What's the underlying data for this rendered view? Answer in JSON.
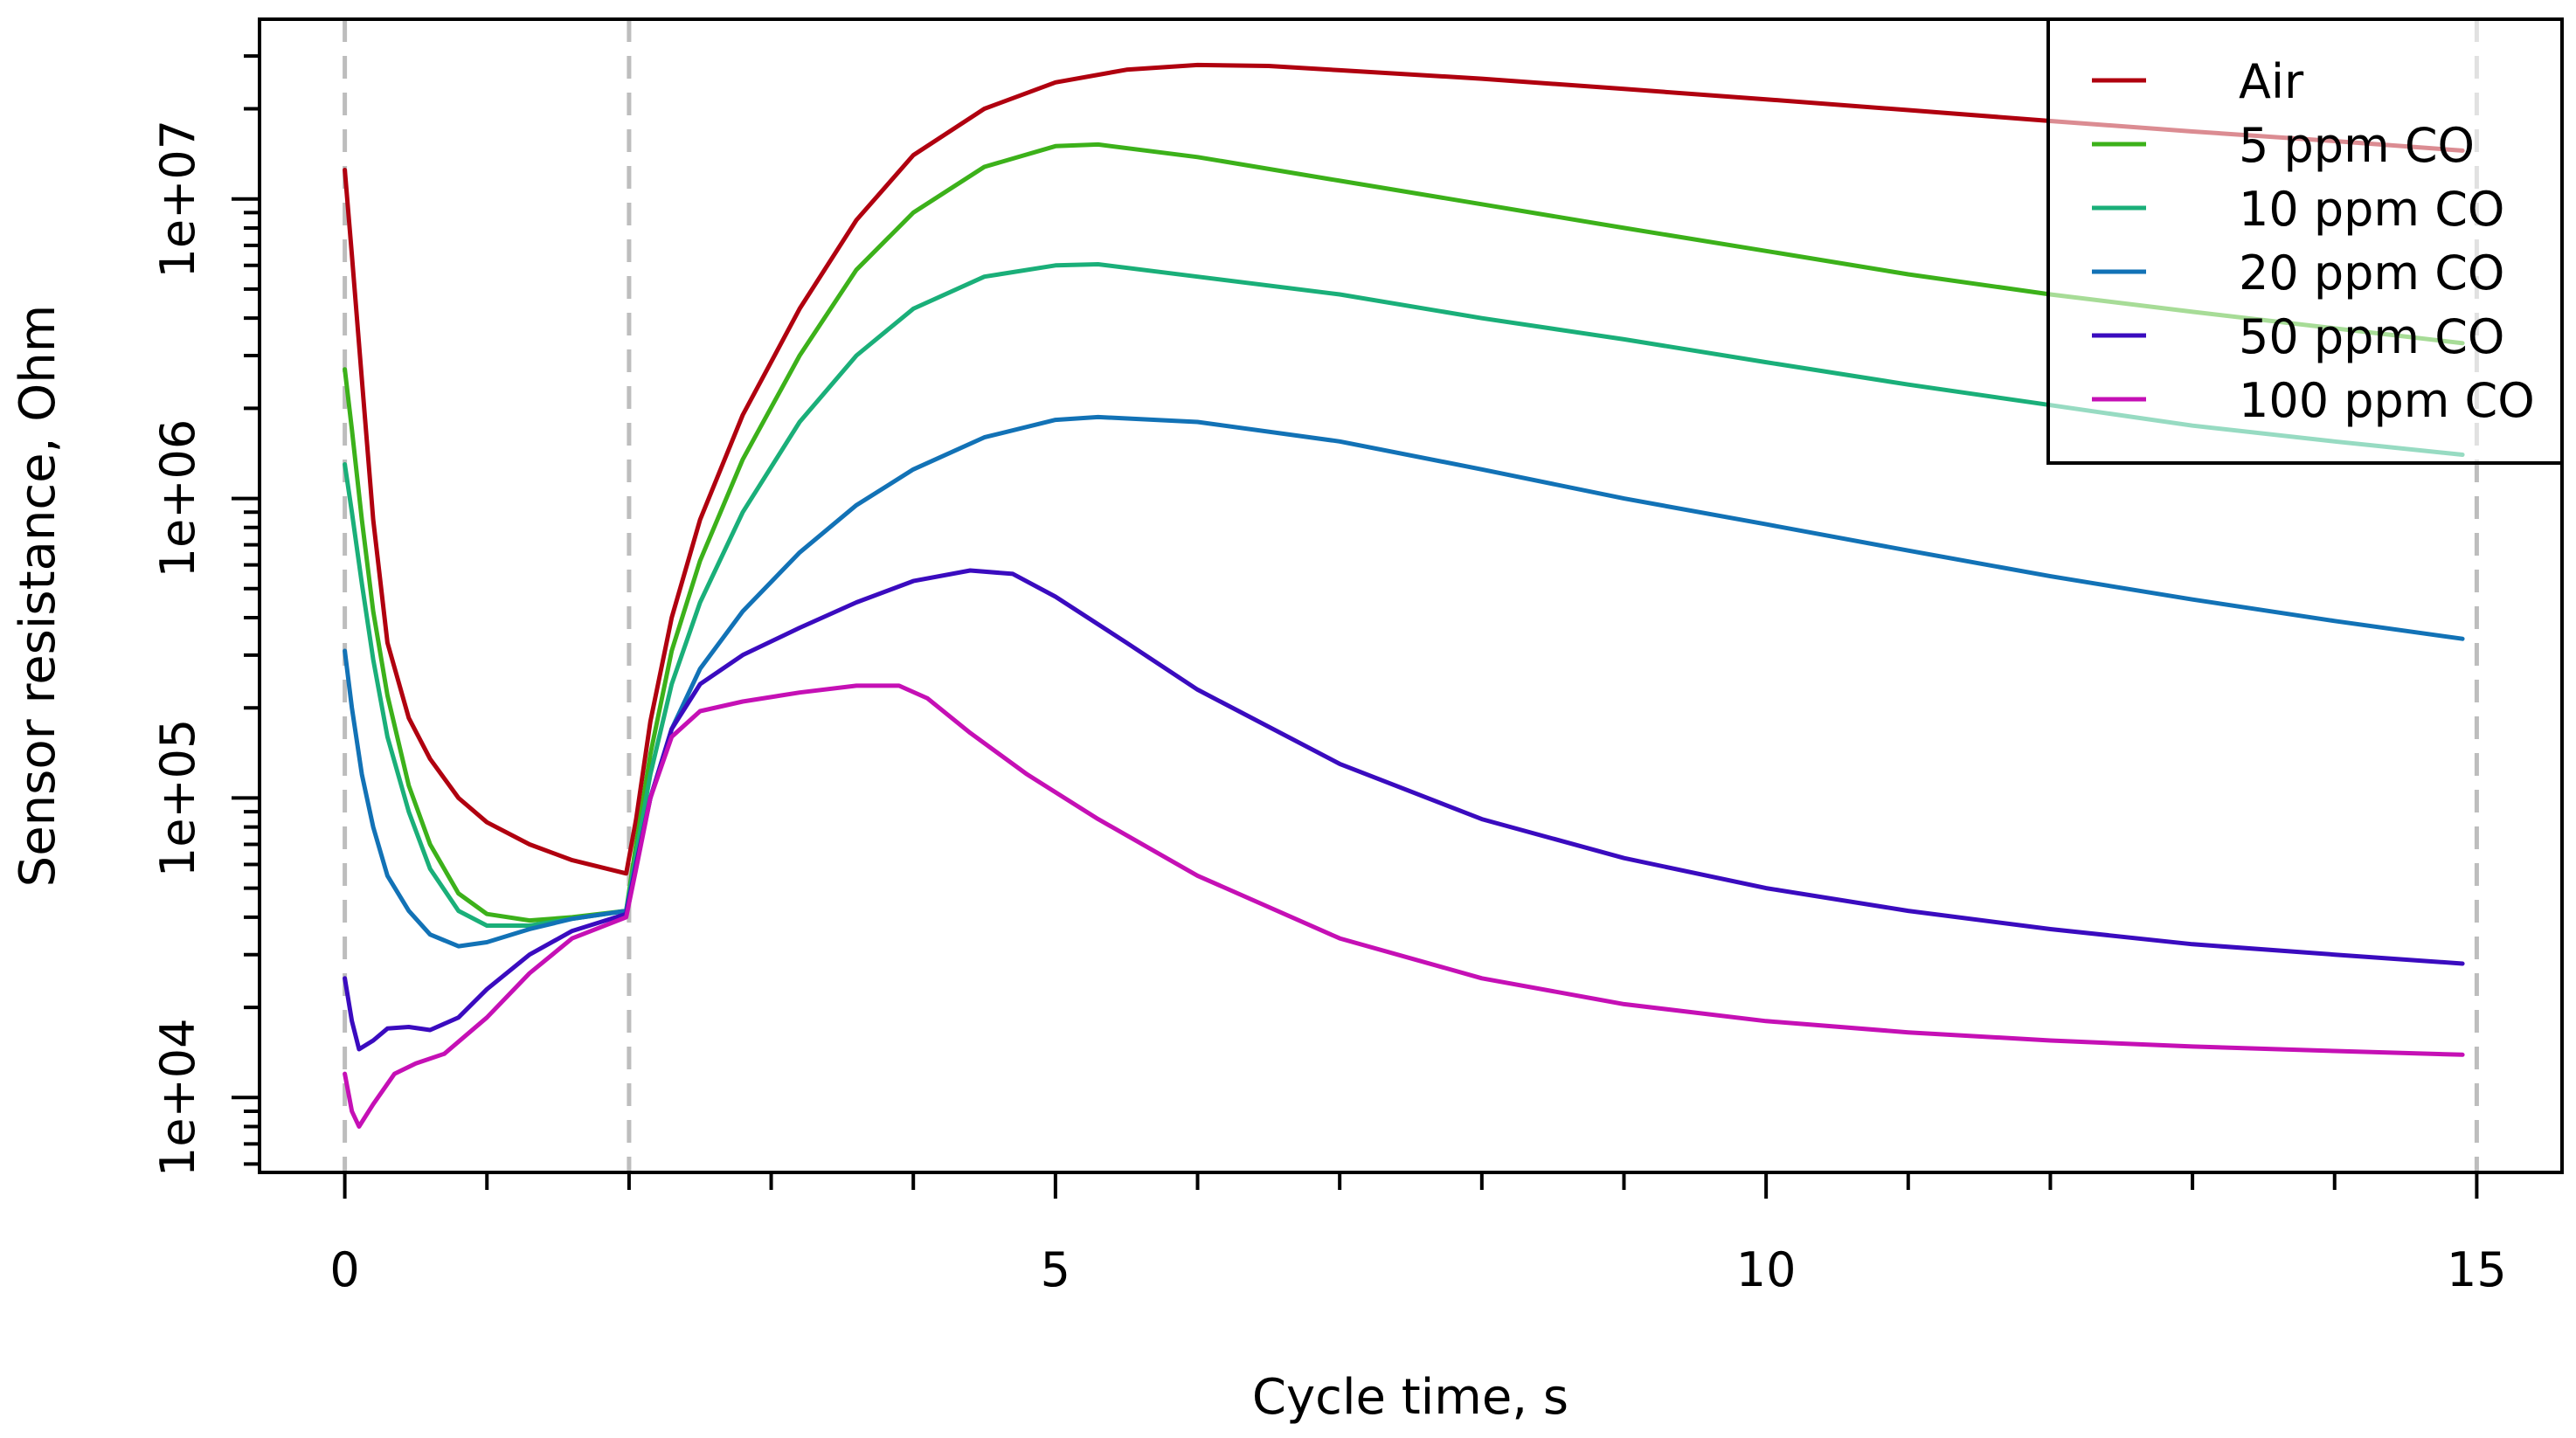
{
  "chart_data": {
    "type": "line",
    "title": "",
    "xlabel": "Cycle time, s",
    "ylabel": "Sensor resistance, Ohm",
    "xlim": [
      -0.6,
      15.6
    ],
    "ylim_log10": [
      3.75,
      7.6
    ],
    "y_scale": "log",
    "x_ticks": [
      0,
      5,
      10,
      15
    ],
    "x_tick_labels": [
      "0",
      "5",
      "10",
      "15"
    ],
    "x_minor_ticks": [
      0,
      1,
      2,
      3,
      4,
      5,
      6,
      7,
      8,
      9,
      10,
      11,
      12,
      13,
      14,
      15
    ],
    "y_ticks": [
      10000,
      100000,
      1000000,
      10000000
    ],
    "y_tick_labels": [
      "1e+04",
      "1e+05",
      "1e+06",
      "1e+07"
    ],
    "vlines": [
      0,
      2,
      15
    ],
    "grid": false,
    "legend_position": "top-right",
    "series": [
      {
        "name": "Air",
        "color": "#b0000f",
        "points": [
          [
            0,
            12500000
          ],
          [
            0.05,
            6500000
          ],
          [
            0.12,
            2500000
          ],
          [
            0.2,
            850000
          ],
          [
            0.3,
            330000
          ],
          [
            0.45,
            185000
          ],
          [
            0.6,
            135000
          ],
          [
            0.8,
            100000
          ],
          [
            1.0,
            83000
          ],
          [
            1.3,
            70000
          ],
          [
            1.6,
            62000
          ],
          [
            1.98,
            56000
          ],
          [
            2.05,
            85000
          ],
          [
            2.15,
            180000
          ],
          [
            2.3,
            400000
          ],
          [
            2.5,
            850000
          ],
          [
            2.8,
            1900000
          ],
          [
            3.2,
            4300000
          ],
          [
            3.6,
            8500000
          ],
          [
            4.0,
            14000000
          ],
          [
            4.5,
            20000000
          ],
          [
            5.0,
            24500000
          ],
          [
            5.5,
            27000000
          ],
          [
            6.0,
            28000000
          ],
          [
            6.5,
            27800000
          ],
          [
            7.0,
            26900000
          ],
          [
            8.0,
            25200000
          ],
          [
            9.0,
            23300000
          ],
          [
            10.0,
            21500000
          ],
          [
            11.0,
            19800000
          ],
          [
            12.0,
            18200000
          ],
          [
            13.0,
            16800000
          ],
          [
            14.0,
            15600000
          ],
          [
            14.9,
            14500000
          ]
        ]
      },
      {
        "name": "5 ppm CO",
        "color": "#3cb11a",
        "points": [
          [
            0,
            2700000
          ],
          [
            0.05,
            1700000
          ],
          [
            0.12,
            850000
          ],
          [
            0.2,
            420000
          ],
          [
            0.3,
            220000
          ],
          [
            0.45,
            110000
          ],
          [
            0.6,
            70000
          ],
          [
            0.8,
            48000
          ],
          [
            1.0,
            41000
          ],
          [
            1.3,
            39000
          ],
          [
            1.6,
            40000
          ],
          [
            1.98,
            42000
          ],
          [
            2.05,
            70000
          ],
          [
            2.15,
            140000
          ],
          [
            2.3,
            310000
          ],
          [
            2.5,
            620000
          ],
          [
            2.8,
            1350000
          ],
          [
            3.2,
            3000000
          ],
          [
            3.6,
            5800000
          ],
          [
            4.0,
            9000000
          ],
          [
            4.5,
            12800000
          ],
          [
            5.0,
            15000000
          ],
          [
            5.3,
            15200000
          ],
          [
            6.0,
            13800000
          ],
          [
            7.0,
            11500000
          ],
          [
            8.0,
            9600000
          ],
          [
            9.0,
            8000000
          ],
          [
            10.0,
            6700000
          ],
          [
            11.0,
            5600000
          ],
          [
            12.0,
            4800000
          ],
          [
            13.0,
            4200000
          ],
          [
            14.0,
            3700000
          ],
          [
            14.9,
            3300000
          ]
        ]
      },
      {
        "name": "10 ppm CO",
        "color": "#1aaf79",
        "points": [
          [
            0,
            1300000
          ],
          [
            0.05,
            900000
          ],
          [
            0.12,
            520000
          ],
          [
            0.2,
            290000
          ],
          [
            0.3,
            160000
          ],
          [
            0.45,
            90000
          ],
          [
            0.6,
            58000
          ],
          [
            0.8,
            42000
          ],
          [
            1.0,
            37500
          ],
          [
            1.3,
            37500
          ],
          [
            1.6,
            39500
          ],
          [
            1.98,
            42000
          ],
          [
            2.05,
            65000
          ],
          [
            2.15,
            120000
          ],
          [
            2.3,
            240000
          ],
          [
            2.5,
            450000
          ],
          [
            2.8,
            900000
          ],
          [
            3.2,
            1800000
          ],
          [
            3.6,
            3000000
          ],
          [
            4.0,
            4300000
          ],
          [
            4.5,
            5500000
          ],
          [
            5.0,
            6000000
          ],
          [
            5.3,
            6050000
          ],
          [
            6.0,
            5500000
          ],
          [
            7.0,
            4800000
          ],
          [
            8.0,
            4000000
          ],
          [
            9.0,
            3400000
          ],
          [
            10.0,
            2850000
          ],
          [
            11.0,
            2400000
          ],
          [
            12.0,
            2050000
          ],
          [
            13.0,
            1750000
          ],
          [
            14.0,
            1550000
          ],
          [
            14.9,
            1400000
          ]
        ]
      },
      {
        "name": "20 ppm CO",
        "color": "#1272b6",
        "points": [
          [
            0,
            310000
          ],
          [
            0.05,
            200000
          ],
          [
            0.12,
            120000
          ],
          [
            0.2,
            80000
          ],
          [
            0.3,
            55000
          ],
          [
            0.45,
            42000
          ],
          [
            0.6,
            35000
          ],
          [
            0.8,
            32000
          ],
          [
            1.0,
            33000
          ],
          [
            1.3,
            36500
          ],
          [
            1.6,
            39500
          ],
          [
            1.98,
            42000
          ],
          [
            2.05,
            60000
          ],
          [
            2.15,
            100000
          ],
          [
            2.3,
            170000
          ],
          [
            2.5,
            270000
          ],
          [
            2.8,
            420000
          ],
          [
            3.2,
            660000
          ],
          [
            3.6,
            950000
          ],
          [
            4.0,
            1250000
          ],
          [
            4.5,
            1600000
          ],
          [
            5.0,
            1830000
          ],
          [
            5.3,
            1870000
          ],
          [
            6.0,
            1800000
          ],
          [
            7.0,
            1550000
          ],
          [
            8.0,
            1250000
          ],
          [
            9.0,
            1000000
          ],
          [
            10.0,
            820000
          ],
          [
            11.0,
            670000
          ],
          [
            12.0,
            550000
          ],
          [
            13.0,
            460000
          ],
          [
            14.0,
            390000
          ],
          [
            14.9,
            340000
          ]
        ]
      },
      {
        "name": "50 ppm CO",
        "color": "#3a0bbf",
        "points": [
          [
            0,
            25000
          ],
          [
            0.05,
            18000
          ],
          [
            0.1,
            14500
          ],
          [
            0.2,
            15500
          ],
          [
            0.3,
            17000
          ],
          [
            0.45,
            17200
          ],
          [
            0.6,
            16800
          ],
          [
            0.8,
            18500
          ],
          [
            1.0,
            23000
          ],
          [
            1.3,
            30000
          ],
          [
            1.6,
            36000
          ],
          [
            1.98,
            41000
          ],
          [
            2.05,
            60000
          ],
          [
            2.15,
            100000
          ],
          [
            2.3,
            170000
          ],
          [
            2.5,
            240000
          ],
          [
            2.8,
            300000
          ],
          [
            3.2,
            370000
          ],
          [
            3.6,
            450000
          ],
          [
            4.0,
            530000
          ],
          [
            4.4,
            575000
          ],
          [
            4.7,
            560000
          ],
          [
            5.0,
            470000
          ],
          [
            5.5,
            330000
          ],
          [
            6.0,
            230000
          ],
          [
            7.0,
            130000
          ],
          [
            8.0,
            85000
          ],
          [
            9.0,
            63000
          ],
          [
            10.0,
            50000
          ],
          [
            11.0,
            42000
          ],
          [
            12.0,
            36500
          ],
          [
            13.0,
            32500
          ],
          [
            14.0,
            30000
          ],
          [
            14.9,
            28000
          ]
        ]
      },
      {
        "name": "100 ppm CO",
        "color": "#c510b5",
        "points": [
          [
            0,
            12000
          ],
          [
            0.05,
            9000
          ],
          [
            0.1,
            8000
          ],
          [
            0.2,
            9500
          ],
          [
            0.35,
            12000
          ],
          [
            0.5,
            13000
          ],
          [
            0.7,
            14000
          ],
          [
            1.0,
            18500
          ],
          [
            1.3,
            26000
          ],
          [
            1.6,
            34000
          ],
          [
            1.98,
            40000
          ],
          [
            2.05,
            58000
          ],
          [
            2.15,
            100000
          ],
          [
            2.3,
            160000
          ],
          [
            2.5,
            195000
          ],
          [
            2.8,
            210000
          ],
          [
            3.2,
            225000
          ],
          [
            3.6,
            237000
          ],
          [
            3.9,
            237000
          ],
          [
            4.1,
            215000
          ],
          [
            4.4,
            165000
          ],
          [
            4.8,
            120000
          ],
          [
            5.3,
            85000
          ],
          [
            6.0,
            55000
          ],
          [
            7.0,
            34000
          ],
          [
            8.0,
            25000
          ],
          [
            9.0,
            20500
          ],
          [
            10.0,
            18000
          ],
          [
            11.0,
            16500
          ],
          [
            12.0,
            15500
          ],
          [
            13.0,
            14800
          ],
          [
            14.0,
            14300
          ],
          [
            14.9,
            13900
          ]
        ]
      }
    ]
  }
}
